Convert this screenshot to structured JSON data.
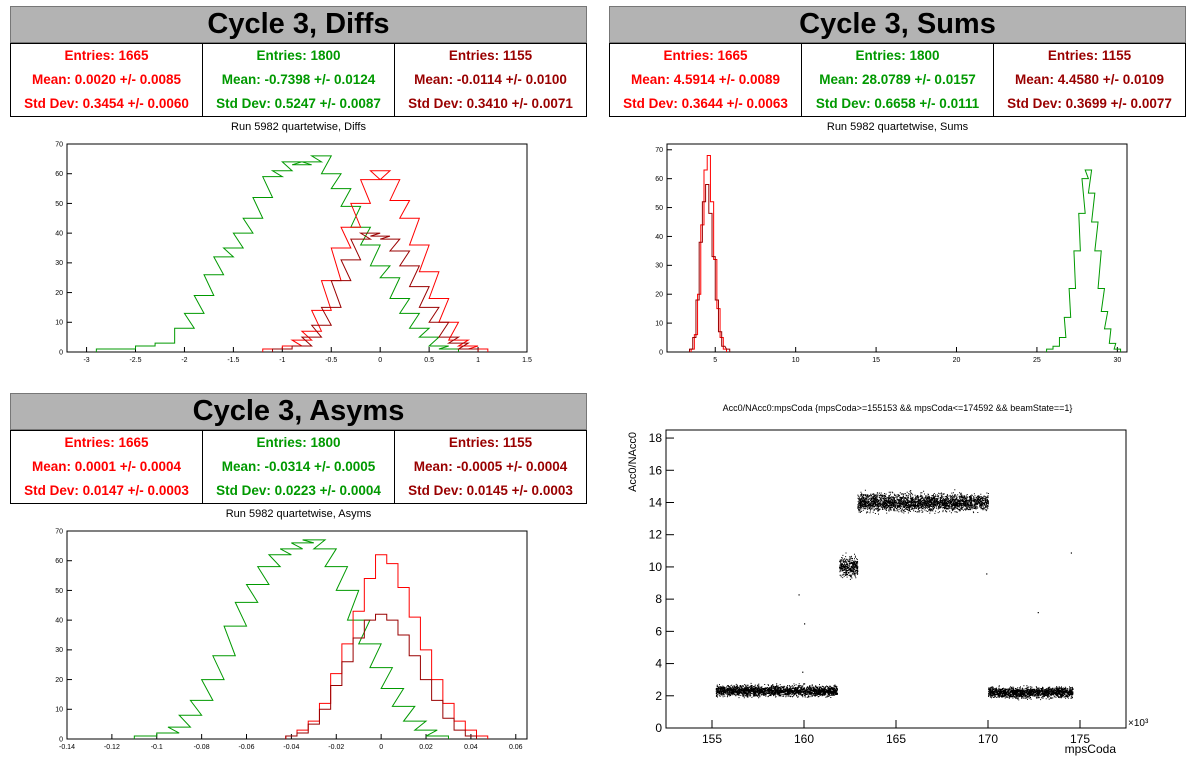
{
  "panels": {
    "diffs": {
      "title": "Cycle 3, Diffs",
      "subtitle": "Run 5982 quartetwise, Diffs",
      "stats": [
        {
          "entries": "Entries: 1665",
          "mean": "Mean: 0.0020 +/- 0.0085",
          "std": "Std Dev: 0.3454 +/- 0.0060",
          "color": "#ff0000"
        },
        {
          "entries": "Entries: 1800",
          "mean": "Mean: -0.7398 +/- 0.0124",
          "std": "Std Dev: 0.5247 +/- 0.0087",
          "color": "#009900"
        },
        {
          "entries": "Entries: 1155",
          "mean": "Mean: -0.0114 +/- 0.0100",
          "std": "Std Dev: 0.3410 +/- 0.0071",
          "color": "#990000"
        }
      ]
    },
    "sums": {
      "title": "Cycle 3, Sums",
      "subtitle": "Run 5982 quartetwise, Sums",
      "stats": [
        {
          "entries": "Entries: 1665",
          "mean": "Mean: 4.5914 +/- 0.0089",
          "std": "Std Dev: 0.3644 +/- 0.0063",
          "color": "#ff0000"
        },
        {
          "entries": "Entries: 1800",
          "mean": "Mean: 28.0789 +/- 0.0157",
          "std": "Std Dev: 0.6658 +/- 0.0111",
          "color": "#009900"
        },
        {
          "entries": "Entries: 1155",
          "mean": "Mean: 4.4580 +/- 0.0109",
          "std": "Std Dev: 0.3699 +/- 0.0077",
          "color": "#990000"
        }
      ]
    },
    "asyms": {
      "title": "Cycle 3, Asyms",
      "subtitle": "Run 5982 quartetwise, Asyms",
      "stats": [
        {
          "entries": "Entries: 1665",
          "mean": "Mean: 0.0001 +/- 0.0004",
          "std": "Std Dev: 0.0147 +/- 0.0003",
          "color": "#ff0000"
        },
        {
          "entries": "Entries: 1800",
          "mean": "Mean: -0.0314 +/- 0.0005",
          "std": "Std Dev: 0.0223 +/- 0.0004",
          "color": "#009900"
        },
        {
          "entries": "Entries: 1155",
          "mean": "Mean: -0.0005 +/- 0.0004",
          "std": "Std Dev: 0.0145 +/- 0.0003",
          "color": "#990000"
        }
      ]
    },
    "scatter": {
      "title": "Acc0/NAcc0:mpsCoda {mpsCoda>=155153 && mpsCoda<=174592 && beamState==1}"
    }
  },
  "chart_data": [
    {
      "type": "histogram",
      "title": "Run 5982 quartetwise, Diffs",
      "xlim": [
        -3.2,
        1.5
      ],
      "ylim": [
        0,
        70
      ],
      "xticks": [
        "-3",
        "-2.5",
        "-2",
        "-1.5",
        "-1",
        "-0.5",
        "0",
        "0.5",
        "1",
        "1.5"
      ],
      "yticks": [
        "0",
        "10",
        "20",
        "30",
        "40",
        "50",
        "60",
        "70"
      ],
      "series": [
        {
          "color": "#009900",
          "points": [
            [
              -2.8,
              1
            ],
            [
              -2.6,
              1
            ],
            [
              -2.4,
              2
            ],
            [
              -2.2,
              3
            ],
            [
              -2.0,
              8
            ],
            [
              -1.9,
              13
            ],
            [
              -1.8,
              19
            ],
            [
              -1.7,
              26
            ],
            [
              -1.6,
              32
            ],
            [
              -1.5,
              35
            ],
            [
              -1.4,
              40
            ],
            [
              -1.3,
              45
            ],
            [
              -1.2,
              52
            ],
            [
              -1.1,
              59
            ],
            [
              -1.0,
              61
            ],
            [
              -0.9,
              64
            ],
            [
              -0.8,
              63
            ],
            [
              -0.7,
              64
            ],
            [
              -0.6,
              66
            ],
            [
              -0.5,
              60
            ],
            [
              -0.4,
              55
            ],
            [
              -0.3,
              49
            ],
            [
              -0.2,
              42
            ],
            [
              -0.1,
              36
            ],
            [
              0.0,
              29
            ],
            [
              0.1,
              25
            ],
            [
              0.2,
              18
            ],
            [
              0.3,
              13
            ],
            [
              0.4,
              8
            ],
            [
              0.5,
              5
            ],
            [
              0.6,
              2
            ],
            [
              0.7,
              1
            ]
          ]
        },
        {
          "color": "#ff0000",
          "points": [
            [
              -1.1,
              1
            ],
            [
              -0.9,
              2
            ],
            [
              -0.8,
              4
            ],
            [
              -0.7,
              7
            ],
            [
              -0.6,
              14
            ],
            [
              -0.5,
              24
            ],
            [
              -0.4,
              35
            ],
            [
              -0.3,
              42
            ],
            [
              -0.2,
              50
            ],
            [
              -0.1,
              58
            ],
            [
              0.0,
              61
            ],
            [
              0.1,
              58
            ],
            [
              0.2,
              51
            ],
            [
              0.3,
              45
            ],
            [
              0.4,
              36
            ],
            [
              0.5,
              27
            ],
            [
              0.6,
              18
            ],
            [
              0.7,
              10
            ],
            [
              0.8,
              4
            ],
            [
              0.9,
              2
            ],
            [
              1.0,
              1
            ]
          ]
        },
        {
          "color": "#990000",
          "points": [
            [
              -1.0,
              1
            ],
            [
              -0.8,
              2
            ],
            [
              -0.7,
              5
            ],
            [
              -0.6,
              9
            ],
            [
              -0.5,
              15
            ],
            [
              -0.4,
              24
            ],
            [
              -0.3,
              31
            ],
            [
              -0.2,
              38
            ],
            [
              -0.1,
              40
            ],
            [
              0.0,
              39
            ],
            [
              0.1,
              38
            ],
            [
              0.2,
              34
            ],
            [
              0.3,
              29
            ],
            [
              0.4,
              22
            ],
            [
              0.5,
              15
            ],
            [
              0.6,
              10
            ],
            [
              0.7,
              5
            ],
            [
              0.8,
              3
            ],
            [
              0.9,
              1
            ]
          ]
        }
      ]
    },
    {
      "type": "histogram",
      "title": "Run 5982 quartetwise, Sums",
      "xlim": [
        2,
        30.6
      ],
      "ylim": [
        0,
        72
      ],
      "xticks": [
        "5",
        "10",
        "15",
        "20",
        "25",
        "30"
      ],
      "yticks": [
        "0",
        "10",
        "20",
        "30",
        "40",
        "50",
        "60",
        "70"
      ],
      "series": [
        {
          "color": "#009900",
          "points": [
            [
              25.8,
              1
            ],
            [
              26.2,
              2
            ],
            [
              26.6,
              5
            ],
            [
              26.9,
              12
            ],
            [
              27.2,
              22
            ],
            [
              27.5,
              35
            ],
            [
              27.8,
              48
            ],
            [
              28.0,
              60
            ],
            [
              28.2,
              63
            ],
            [
              28.4,
              55
            ],
            [
              28.6,
              45
            ],
            [
              28.8,
              35
            ],
            [
              29.0,
              22
            ],
            [
              29.2,
              14
            ],
            [
              29.4,
              8
            ],
            [
              29.7,
              3
            ],
            [
              30.0,
              1
            ]
          ]
        },
        {
          "color": "#ff0000",
          "points": [
            [
              3.6,
              1
            ],
            [
              3.8,
              6
            ],
            [
              4.0,
              20
            ],
            [
              4.2,
              44
            ],
            [
              4.4,
              63
            ],
            [
              4.6,
              68
            ],
            [
              4.8,
              52
            ],
            [
              5.0,
              32
            ],
            [
              5.2,
              15
            ],
            [
              5.4,
              5
            ],
            [
              5.6,
              1
            ]
          ]
        },
        {
          "color": "#990000",
          "points": [
            [
              3.5,
              1
            ],
            [
              3.7,
              5
            ],
            [
              3.9,
              18
            ],
            [
              4.1,
              38
            ],
            [
              4.3,
              52
            ],
            [
              4.5,
              58
            ],
            [
              4.7,
              48
            ],
            [
              4.9,
              33
            ],
            [
              5.1,
              18
            ],
            [
              5.3,
              7
            ],
            [
              5.5,
              2
            ],
            [
              5.8,
              1
            ]
          ]
        }
      ]
    },
    {
      "type": "histogram",
      "title": "Run 5982 quartetwise, Asyms",
      "xlim": [
        -0.14,
        0.065
      ],
      "ylim": [
        0,
        70
      ],
      "xticks": [
        "-0.14",
        "-0.12",
        "-0.1",
        "-0.08",
        "-0.06",
        "-0.04",
        "-0.02",
        "0",
        "0.02",
        "0.04",
        "0.06"
      ],
      "yticks": [
        "0",
        "10",
        "20",
        "30",
        "40",
        "50",
        "60",
        "70"
      ],
      "series": [
        {
          "color": "#009900",
          "points": [
            [
              -0.105,
              1
            ],
            [
              -0.095,
              2
            ],
            [
              -0.09,
              4
            ],
            [
              -0.085,
              8
            ],
            [
              -0.08,
              13
            ],
            [
              -0.075,
              20
            ],
            [
              -0.07,
              28
            ],
            [
              -0.065,
              38
            ],
            [
              -0.06,
              46
            ],
            [
              -0.055,
              52
            ],
            [
              -0.05,
              58
            ],
            [
              -0.045,
              62
            ],
            [
              -0.04,
              64
            ],
            [
              -0.035,
              66
            ],
            [
              -0.03,
              67
            ],
            [
              -0.025,
              64
            ],
            [
              -0.02,
              58
            ],
            [
              -0.015,
              50
            ],
            [
              -0.01,
              40
            ],
            [
              -0.005,
              32
            ],
            [
              0.0,
              24
            ],
            [
              0.005,
              17
            ],
            [
              0.01,
              11
            ],
            [
              0.015,
              6
            ],
            [
              0.02,
              3
            ],
            [
              0.025,
              1
            ]
          ]
        },
        {
          "color": "#ff0000",
          "points": [
            [
              -0.04,
              1
            ],
            [
              -0.035,
              3
            ],
            [
              -0.03,
              6
            ],
            [
              -0.025,
              12
            ],
            [
              -0.02,
              22
            ],
            [
              -0.015,
              32
            ],
            [
              -0.01,
              43
            ],
            [
              -0.005,
              54
            ],
            [
              0.0,
              62
            ],
            [
              0.005,
              59
            ],
            [
              0.01,
              51
            ],
            [
              0.015,
              41
            ],
            [
              0.02,
              30
            ],
            [
              0.025,
              20
            ],
            [
              0.03,
              12
            ],
            [
              0.035,
              6
            ],
            [
              0.04,
              3
            ],
            [
              0.045,
              1
            ]
          ]
        },
        {
          "color": "#990000",
          "points": [
            [
              -0.04,
              1
            ],
            [
              -0.035,
              2
            ],
            [
              -0.03,
              5
            ],
            [
              -0.025,
              10
            ],
            [
              -0.02,
              18
            ],
            [
              -0.015,
              26
            ],
            [
              -0.01,
              34
            ],
            [
              -0.005,
              40
            ],
            [
              0.0,
              42
            ],
            [
              0.005,
              40
            ],
            [
              0.01,
              35
            ],
            [
              0.015,
              28
            ],
            [
              0.02,
              20
            ],
            [
              0.025,
              13
            ],
            [
              0.03,
              7
            ],
            [
              0.035,
              3
            ],
            [
              0.04,
              1
            ]
          ]
        }
      ]
    },
    {
      "type": "scatter",
      "title": "Acc0/NAcc0:mpsCoda {mpsCoda>=155153 && mpsCoda<=174592 && beamState==1}",
      "xlabel": "mpsCoda",
      "ylabel": "Acc0/NAcc0",
      "xscale_label": "×10³",
      "xlim": [
        152.5,
        177.5
      ],
      "ylim": [
        0,
        18.5
      ],
      "xticks": [
        "155",
        "160",
        "165",
        "170",
        "175"
      ],
      "yticks": [
        "0",
        "2",
        "4",
        "6",
        "8",
        "10",
        "12",
        "14",
        "16",
        "18"
      ],
      "clusters": [
        {
          "x": [
            155.2,
            161.8
          ],
          "y_center": 2.3,
          "y_spread": 0.55
        },
        {
          "x": [
            161.9,
            162.9
          ],
          "y_center": 10.0,
          "y_spread": 1.0
        },
        {
          "x": [
            162.9,
            170.0
          ],
          "y_center": 14.0,
          "y_spread": 0.9
        },
        {
          "x": [
            170.0,
            174.6
          ],
          "y_center": 2.2,
          "y_spread": 0.55
        }
      ],
      "outliers": [
        [
          159.7,
          8.3
        ],
        [
          160.0,
          6.5
        ],
        [
          159.9,
          3.5
        ],
        [
          169.9,
          9.6
        ],
        [
          174.5,
          10.9
        ],
        [
          172.7,
          7.2
        ]
      ]
    }
  ]
}
